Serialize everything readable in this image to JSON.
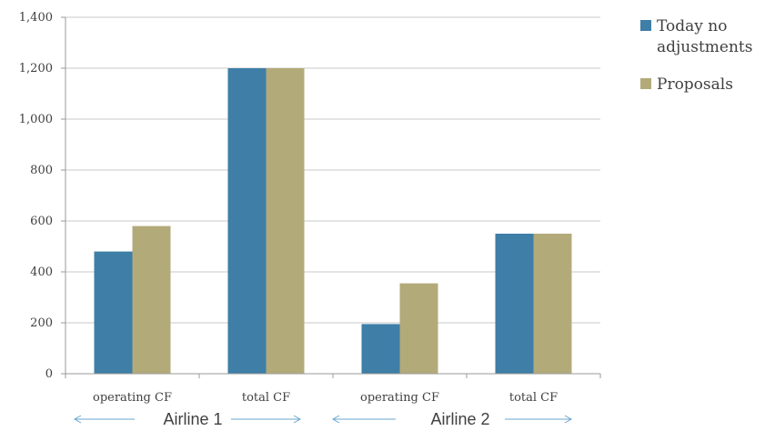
{
  "chart_data": {
    "type": "bar",
    "categories": [
      "operating CF",
      "total CF",
      "operating CF",
      "total CF"
    ],
    "groups": [
      "Airline 1",
      "Airline 2"
    ],
    "series": [
      {
        "name": "Today no adjustments",
        "name_lines": [
          "Today no",
          "adjustments"
        ],
        "color": "#3e7ea7",
        "values": [
          480,
          1200,
          195,
          550
        ]
      },
      {
        "name": "Proposals",
        "name_lines": [
          "Proposals"
        ],
        "color": "#b3aa7a",
        "values": [
          580,
          1200,
          355,
          550
        ]
      }
    ],
    "yticks": [
      0,
      200,
      400,
      600,
      800,
      1000,
      1200,
      1400
    ],
    "ytick_labels": [
      "0",
      "200",
      "400",
      "600",
      "800",
      "1,000",
      "1,200",
      "1,400"
    ],
    "ylim": [
      0,
      1400
    ],
    "grid": true,
    "legend_position": "right"
  },
  "colors": {
    "grid": "#c8c8c8",
    "axis": "#9a9a9a",
    "arrow": "#6aa6cf",
    "text": "#404040"
  }
}
